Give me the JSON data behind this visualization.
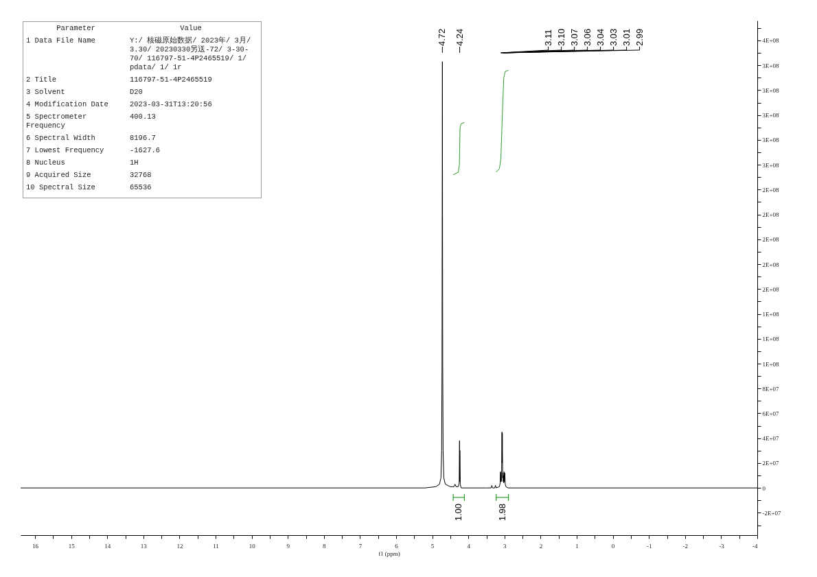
{
  "chart_data": [
    {
      "type": "other",
      "annotations": [
        "Parameter",
        "Value",
        "1 Data File Name",
        "Y:/ 核磁原始数据/ 2023年/ 3月/ 3.30/ 20230330另送-72/ 3-30-70/ 116797-51-4P2465519/ 1/ pdata/ 1/ 1r",
        "2 Title",
        "116797-51-4P2465519",
        "3 Solvent",
        "D20",
        "4 Modification Date",
        "2023-03-31T13:20:56",
        "5 Spectrometer Frequency",
        "400.13",
        "6 Spectral Width",
        "8196.7",
        "7 Lowest Frequency",
        "-1627.6",
        "8 Nucleus",
        "1H",
        "9 Acquired Size",
        "32768",
        "10 Spectral Size",
        "65536"
      ]
    },
    {
      "type": "line",
      "xlabel": "f1 (ppm)",
      "xlim": [
        16.4,
        -4
      ],
      "ylim": [
        -38000000,
        376000000
      ],
      "xticks": [
        16,
        {
          "value": 15.5,
          "label": null
        },
        15,
        {
          "value": 14.5,
          "label": null
        },
        14,
        {
          "value": 13.5,
          "label": null
        },
        13,
        {
          "value": 12.5,
          "label": null
        },
        12,
        {
          "value": 11.5,
          "label": null
        },
        11,
        {
          "value": 10.5,
          "label": null
        },
        10,
        {
          "value": 9.5,
          "label": null
        },
        9,
        {
          "value": 8.5,
          "label": null
        },
        8,
        {
          "value": 7.5,
          "label": null
        },
        7,
        {
          "value": 6.5,
          "label": null
        },
        6,
        {
          "value": 5.5,
          "label": null
        },
        5,
        {
          "value": 4.5,
          "label": null
        },
        4,
        {
          "value": 3.5,
          "label": null
        },
        3,
        {
          "value": 2.5,
          "label": null
        },
        2,
        {
          "value": 1.5,
          "label": null
        },
        1,
        {
          "value": 0.5,
          "label": null
        },
        0,
        {
          "value": -0.5,
          "label": null
        },
        -1,
        {
          "value": -1.5,
          "label": null
        },
        -2,
        {
          "value": -2.5,
          "label": null
        },
        -3,
        {
          "value": -3.5,
          "label": null
        },
        -4
      ],
      "yticks": [
        {
          "value": -30000000,
          "label": null
        },
        {
          "value": -20000000,
          "label": "-2E+07"
        },
        {
          "value": -10000000,
          "label": null
        },
        0,
        {
          "value": 10000000,
          "label": null
        },
        {
          "value": 20000000,
          "label": "2E+07"
        },
        {
          "value": 30000000,
          "label": null
        },
        {
          "value": 40000000,
          "label": "4E+07"
        },
        {
          "value": 50000000,
          "label": null
        },
        {
          "value": 60000000,
          "label": "6E+07"
        },
        {
          "value": 70000000,
          "label": null
        },
        {
          "value": 80000000,
          "label": "8E+07"
        },
        {
          "value": 90000000,
          "label": null
        },
        {
          "value": 100000000,
          "label": "1E+08"
        },
        {
          "value": 110000000,
          "label": null
        },
        {
          "value": 120000000,
          "label": "1E+08"
        },
        {
          "value": 130000000,
          "label": null
        },
        {
          "value": 140000000,
          "label": "1E+08"
        },
        {
          "value": 150000000,
          "label": null
        },
        {
          "value": 160000000,
          "label": "2E+08"
        },
        {
          "value": 170000000,
          "label": null
        },
        {
          "value": 180000000,
          "label": "2E+08"
        },
        {
          "value": 190000000,
          "label": null
        },
        {
          "value": 200000000,
          "label": "2E+08"
        },
        {
          "value": 210000000,
          "label": null
        },
        {
          "value": 220000000,
          "label": "2E+08"
        },
        {
          "value": 230000000,
          "label": null
        },
        {
          "value": 240000000,
          "label": "2E+08"
        },
        {
          "value": 250000000,
          "label": null
        },
        {
          "value": 260000000,
          "label": "3E+08"
        },
        {
          "value": 270000000,
          "label": null
        },
        {
          "value": 280000000,
          "label": "3E+08"
        },
        {
          "value": 290000000,
          "label": null
        },
        {
          "value": 300000000,
          "label": "3E+08"
        },
        {
          "value": 310000000,
          "label": null
        },
        {
          "value": 320000000,
          "label": "3E+08"
        },
        {
          "value": 330000000,
          "label": null
        },
        {
          "value": 340000000,
          "label": "3E+08"
        },
        {
          "value": 350000000,
          "label": null
        },
        {
          "value": 360000000,
          "label": "4E+08"
        },
        {
          "value": 370000000,
          "label": null
        }
      ],
      "series": [
        {
          "color": "#000000",
          "x": [
            16.4,
            5.2,
            4.9,
            4.8,
            4.76,
            4.74,
            4.73,
            4.725,
            4.72,
            4.715,
            4.71,
            4.7,
            4.68,
            4.64,
            4.5,
            4.4,
            4.37,
            4.34,
            4.28,
            4.255,
            4.245,
            4.24,
            4.235,
            4.225,
            4.2,
            3.5,
            3.37,
            3.35,
            3.33,
            3.27,
            3.25,
            3.23,
            3.14,
            3.12,
            3.11,
            3.105,
            3.1,
            3.09,
            3.08,
            3.07,
            3.065,
            3.06,
            3.05,
            3.04,
            3.035,
            3.03,
            3.02,
            3.01,
            3.0,
            2.99,
            2.98,
            2.96,
            2.9,
            -4
          ],
          "values": [
            0,
            0,
            1000000,
            3000000,
            8000000,
            30000000,
            100000000,
            220000000,
            343000000,
            220000000,
            100000000,
            30000000,
            8000000,
            3000000,
            1000000,
            1000000,
            3000000,
            1000000,
            1000000,
            4000000,
            38000000,
            5000000,
            30000000,
            3000000,
            0,
            0,
            0,
            2000000,
            0,
            0,
            2000000,
            0,
            1000000,
            4000000,
            13000000,
            5000000,
            12000000,
            5000000,
            8000000,
            45000000,
            20000000,
            44000000,
            8000000,
            12000000,
            5000000,
            10000000,
            4000000,
            13000000,
            5000000,
            12000000,
            3000000,
            1000000,
            0,
            0
          ]
        },
        {
          "color": "#2e9b2e",
          "x": [
            4.42,
            4.28,
            4.25,
            4.23,
            4.2,
            4.11
          ],
          "values": [
            252000000,
            254000000,
            260000000,
            290000000,
            293000000,
            294000000
          ]
        },
        {
          "color": "#2e9b2e",
          "x": [
            3.23,
            3.14,
            3.1,
            3.06,
            3.02,
            2.98,
            2.89
          ],
          "values": [
            254000000,
            257000000,
            265000000,
            300000000,
            330000000,
            335000000,
            336000000
          ]
        }
      ],
      "annotations": [
        {
          "text": "4.72",
          "x": 4.72
        },
        {
          "text": "4.24",
          "x": 4.24
        },
        {
          "text": "3.11",
          "x": 3.11
        },
        {
          "text": "3.10",
          "x": 3.1
        },
        {
          "text": "3.07",
          "x": 3.07
        },
        {
          "text": "3.06",
          "x": 3.06
        },
        {
          "text": "3.04",
          "x": 3.04
        },
        {
          "text": "3.03",
          "x": 3.03
        },
        {
          "text": "3.01",
          "x": 3.01
        },
        {
          "text": "2.99",
          "x": 2.99
        },
        "1.00",
        "1.98"
      ]
    }
  ]
}
